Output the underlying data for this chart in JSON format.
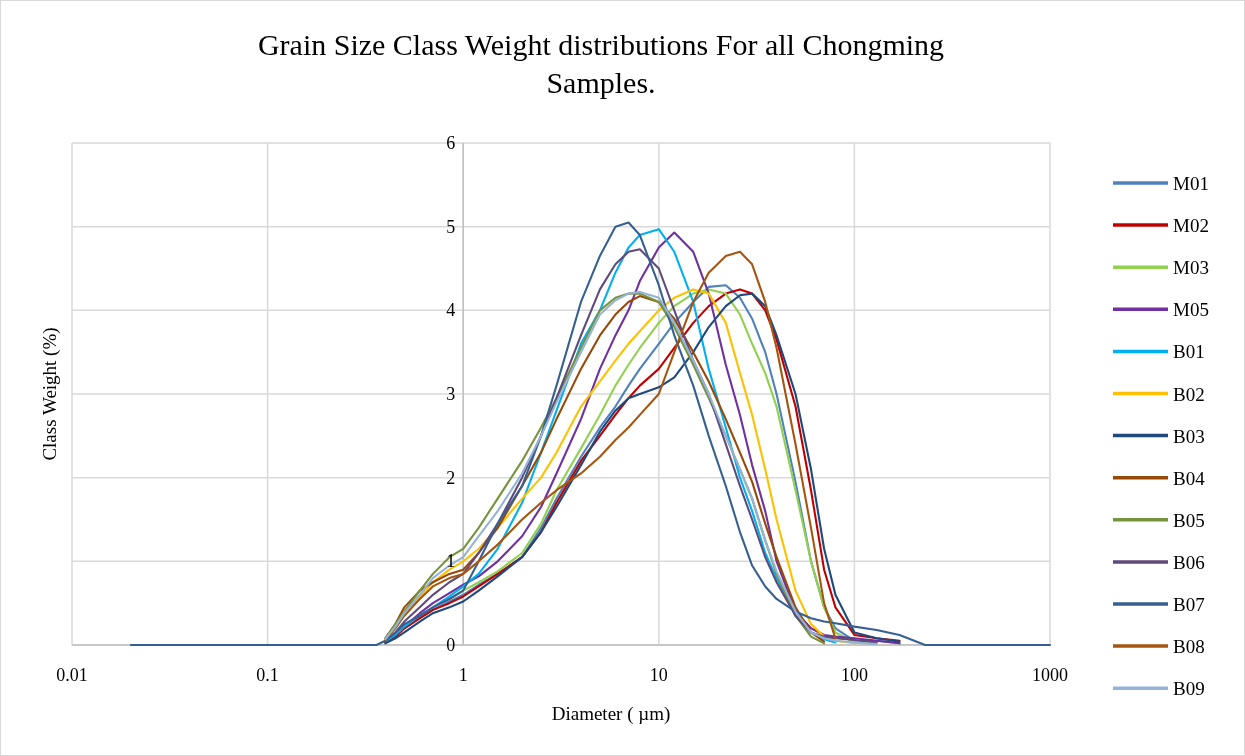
{
  "chart_data": {
    "type": "line",
    "title": "Grain Size Class Weight distributions For all Chongming Samples.",
    "xlabel": "Diameter ( µm)",
    "ylabel": "Class Weight (%)",
    "log": "x",
    "grid": true,
    "legend": "right",
    "marker": "none",
    "line_style": "solid",
    "xlim": [
      0.01,
      1000
    ],
    "xticks": [
      0.01,
      0.1,
      1,
      10,
      100,
      1000
    ],
    "ylim": [
      0,
      6
    ],
    "yticks": [
      0,
      1,
      2,
      3,
      4,
      5,
      6
    ],
    "x": [
      0.02,
      0.36,
      0.4,
      0.45,
      0.5,
      0.6,
      0.7,
      0.85,
      1,
      1.2,
      1.5,
      2,
      2.5,
      3,
      4,
      5,
      6,
      7,
      8,
      10,
      12,
      15,
      18,
      22,
      26,
      30,
      35,
      40,
      50,
      60,
      70,
      80,
      100,
      130,
      170,
      230,
      1000
    ],
    "series": [
      {
        "name": "M01",
        "color": "#4f81bd",
        "values": [
          null,
          null,
          0.03,
          0.1,
          0.2,
          0.32,
          0.42,
          0.52,
          0.6,
          0.72,
          0.85,
          1.05,
          1.4,
          1.75,
          2.25,
          2.6,
          2.85,
          3.1,
          3.3,
          3.6,
          3.85,
          4.1,
          4.28,
          4.3,
          4.15,
          3.9,
          3.5,
          3.0,
          1.95,
          1.0,
          0.45,
          0.2,
          0.05,
          0.05,
          0.02,
          null,
          null
        ]
      },
      {
        "name": "M02",
        "color": "#c00000",
        "values": [
          null,
          null,
          0.03,
          0.1,
          0.2,
          0.32,
          0.42,
          0.5,
          0.58,
          0.7,
          0.85,
          1.05,
          1.35,
          1.7,
          2.2,
          2.5,
          2.75,
          2.95,
          3.1,
          3.3,
          3.55,
          3.85,
          4.05,
          4.2,
          4.25,
          4.2,
          4.0,
          3.65,
          2.85,
          1.85,
          0.9,
          0.45,
          0.12,
          0.08,
          0.05,
          null,
          null
        ]
      },
      {
        "name": "M03",
        "color": "#92d050",
        "values": [
          null,
          null,
          null,
          null,
          null,
          null,
          null,
          0.55,
          0.65,
          0.75,
          0.88,
          1.1,
          1.45,
          1.85,
          2.35,
          2.75,
          3.1,
          3.35,
          3.55,
          3.85,
          4.05,
          4.2,
          4.25,
          4.2,
          3.95,
          3.6,
          3.25,
          2.85,
          1.85,
          1.0,
          0.45,
          0.15,
          0.03,
          0.02,
          null,
          null,
          null
        ]
      },
      {
        "name": "M05",
        "color": "#7030a0",
        "values": [
          null,
          null,
          0.04,
          0.12,
          0.22,
          0.38,
          0.5,
          0.62,
          0.72,
          0.82,
          1.0,
          1.3,
          1.65,
          2.05,
          2.7,
          3.3,
          3.7,
          4.0,
          4.35,
          4.75,
          4.93,
          4.7,
          4.2,
          3.35,
          2.75,
          2.15,
          1.6,
          1.0,
          0.4,
          0.2,
          0.12,
          0.1,
          0.08,
          0.05,
          0.02,
          null,
          null
        ]
      },
      {
        "name": "B01",
        "color": "#00b0f0",
        "values": [
          null,
          null,
          0.04,
          0.12,
          0.22,
          0.35,
          0.45,
          0.58,
          0.7,
          0.85,
          1.15,
          1.7,
          2.3,
          2.8,
          3.6,
          4.0,
          4.45,
          4.75,
          4.9,
          4.97,
          4.7,
          4.1,
          3.3,
          2.6,
          2.0,
          1.6,
          1.1,
          0.8,
          0.35,
          0.15,
          0.07,
          0.03,
          null,
          null,
          null,
          null,
          null
        ]
      },
      {
        "name": "B02",
        "color": "#ffc000",
        "values": [
          null,
          null,
          null,
          null,
          0.35,
          0.58,
          0.75,
          0.9,
          1.0,
          1.15,
          1.4,
          1.75,
          2.0,
          2.3,
          2.85,
          3.15,
          3.4,
          3.6,
          3.75,
          4.0,
          4.15,
          4.25,
          4.2,
          3.85,
          3.25,
          2.75,
          2.1,
          1.5,
          0.65,
          0.25,
          0.1,
          0.05,
          0.02,
          null,
          null,
          null,
          null
        ]
      },
      {
        "name": "B03",
        "color": "#1f497d",
        "values": [
          null,
          null,
          0.02,
          0.08,
          0.15,
          0.28,
          0.38,
          0.45,
          0.52,
          0.65,
          0.82,
          1.05,
          1.35,
          1.65,
          2.15,
          2.55,
          2.8,
          2.95,
          3.0,
          3.08,
          3.2,
          3.5,
          3.8,
          4.05,
          4.18,
          4.2,
          4.05,
          3.7,
          3.0,
          2.1,
          1.15,
          0.6,
          0.15,
          0.08,
          0.04,
          null,
          null
        ]
      },
      {
        "name": "B04",
        "color": "#984807",
        "values": [
          null,
          null,
          0.08,
          0.25,
          0.45,
          0.65,
          0.75,
          0.85,
          0.9,
          1.1,
          1.4,
          1.9,
          2.3,
          2.7,
          3.3,
          3.7,
          3.95,
          4.1,
          4.17,
          4.1,
          3.9,
          3.5,
          3.15,
          2.7,
          2.3,
          1.95,
          1.45,
          1.05,
          0.45,
          0.15,
          0.04,
          null,
          null,
          null,
          null,
          null,
          null
        ]
      },
      {
        "name": "B05",
        "color": "#77933c",
        "values": [
          null,
          null,
          0.08,
          0.25,
          0.4,
          0.65,
          0.85,
          1.05,
          1.15,
          1.4,
          1.75,
          2.2,
          2.6,
          2.95,
          3.55,
          4.0,
          4.15,
          4.2,
          4.2,
          4.1,
          3.8,
          3.35,
          2.95,
          2.5,
          2.1,
          1.75,
          1.25,
          0.85,
          0.35,
          0.1,
          0.02,
          null,
          null,
          null,
          null,
          null,
          null
        ]
      },
      {
        "name": "B06",
        "color": "#604a7b",
        "values": [
          null,
          null,
          0.05,
          0.15,
          0.28,
          0.45,
          0.6,
          0.75,
          0.85,
          1.1,
          1.45,
          2.0,
          2.5,
          2.95,
          3.7,
          4.25,
          4.55,
          4.7,
          4.73,
          4.5,
          4.0,
          3.4,
          3.0,
          2.4,
          1.9,
          1.5,
          1.05,
          0.75,
          0.35,
          0.15,
          0.1,
          0.08,
          0.06,
          0.03,
          null,
          null,
          null
        ]
      },
      {
        "name": "B07",
        "color": "#376092",
        "values": [
          0,
          0,
          0.05,
          0.15,
          0.25,
          0.35,
          0.45,
          0.55,
          0.65,
          1.0,
          1.45,
          1.9,
          2.5,
          3.1,
          4.1,
          4.65,
          5.0,
          5.05,
          4.9,
          4.3,
          3.7,
          3.1,
          2.5,
          1.9,
          1.35,
          0.95,
          0.7,
          0.55,
          0.4,
          0.32,
          0.28,
          0.26,
          0.22,
          0.18,
          0.12,
          0,
          0
        ]
      },
      {
        "name": "B08",
        "color": "#a55510",
        "values": [
          null,
          null,
          0.06,
          0.2,
          0.35,
          0.55,
          0.7,
          0.8,
          0.85,
          1.0,
          1.2,
          1.5,
          1.7,
          1.85,
          2.05,
          2.25,
          2.45,
          2.6,
          2.75,
          3.0,
          3.5,
          4.1,
          4.45,
          4.65,
          4.7,
          4.55,
          4.1,
          3.55,
          2.4,
          1.4,
          0.5,
          0.08,
          null,
          null,
          null,
          null,
          null
        ]
      },
      {
        "name": "B09",
        "color": "#95b3d7",
        "values": [
          null,
          null,
          0.07,
          0.22,
          0.38,
          0.6,
          0.8,
          0.95,
          1.05,
          1.3,
          1.6,
          2.05,
          2.5,
          2.9,
          3.5,
          3.95,
          4.12,
          4.2,
          4.22,
          4.15,
          3.85,
          3.4,
          3.0,
          2.5,
          2.1,
          1.75,
          1.25,
          0.88,
          0.4,
          0.15,
          0.08,
          0.05,
          0.03,
          0.01,
          null,
          null,
          null
        ]
      }
    ]
  }
}
